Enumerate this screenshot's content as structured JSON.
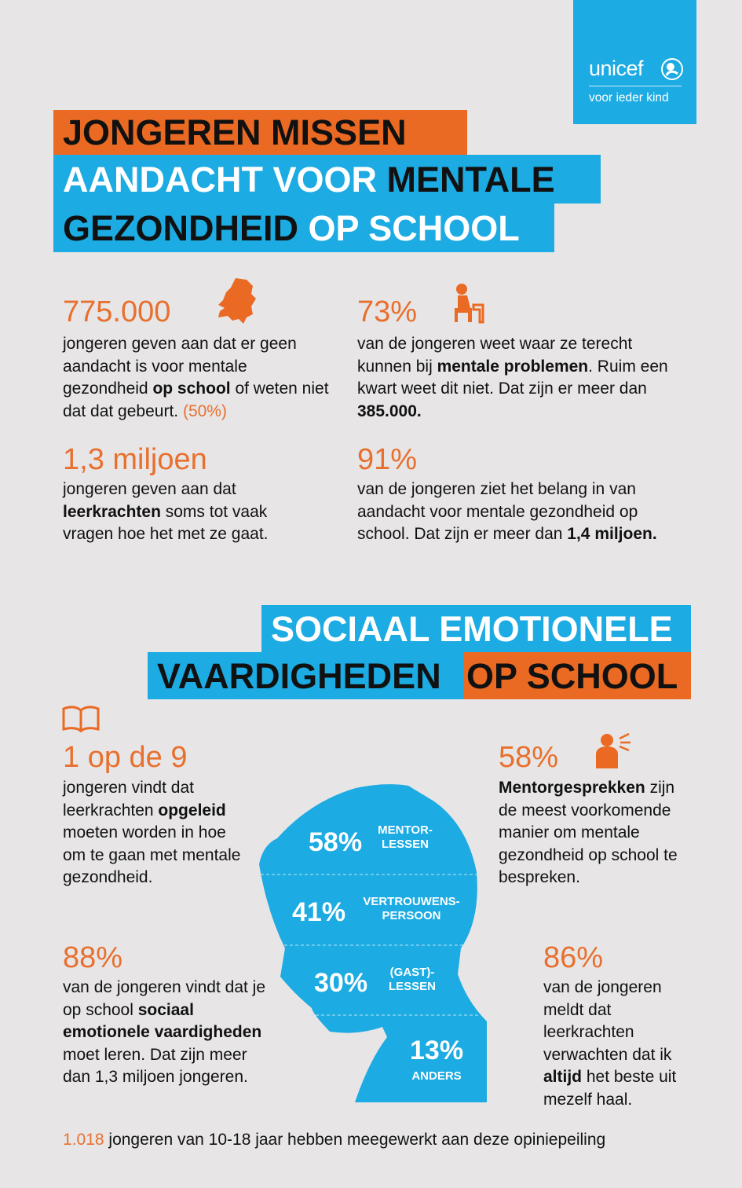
{
  "logo": {
    "name": "unicef",
    "tagline": "voor ieder kind"
  },
  "title": {
    "line1": "JONGEREN MISSEN",
    "line2a": "AANDACHT VOOR ",
    "line2b": "MENTALE",
    "line3a": "GEZONDHEID ",
    "line3b": "OP SCHOOL"
  },
  "stats_top": [
    {
      "number": "775.000",
      "t1": "jongeren geven aan dat er geen aandacht is voor mentale gezondheid ",
      "b1": "op school",
      "t2": " of weten niet dat dat gebeurt. ",
      "note": "(50%)"
    },
    {
      "number": "73%",
      "t1": "van de jongeren weet waar ze terecht kunnen bij ",
      "b1": "mentale problemen",
      "t2": ". Ruim een kwart weet dit niet. Dat zijn er meer dan ",
      "b2": "385.000."
    },
    {
      "number": "1,3 miljoen",
      "t1": "jongeren geven aan dat ",
      "b1": "leerkrachten",
      "t2": " soms tot vaak vragen hoe het met ze gaat."
    },
    {
      "number": "91%",
      "t1": "van de jongeren ziet het belang in van aandacht voor mentale gezondheid op school. Dat zijn er meer dan ",
      "b1": "1,4 miljoen."
    }
  ],
  "section2": {
    "line1": "SOCIAAL EMOTIONELE",
    "line2a": "VAARDIGHEDEN",
    "line2b": " OP SCHOOL"
  },
  "stats_bottom": [
    {
      "number": "1 op de 9",
      "t1": "jongeren vindt dat leerkrachten ",
      "b1": "opgeleid",
      "t2": " moeten worden in hoe om te gaan met mentale gezondheid."
    },
    {
      "number": "88%",
      "t1": "van de jongeren vindt dat je op school ",
      "b1": "sociaal emotionele vaardigheden",
      "t2": " moet leren. Dat zijn meer dan 1,3 miljoen jongeren."
    },
    {
      "number": "58%",
      "b1": "Mentorgesprekken",
      "t2": " zijn de meest voorkomende manier om mentale gezondheid op school te bespreken."
    },
    {
      "number": "86%",
      "t1": "van de jongeren meldt dat leerkrachten verwachten dat ik ",
      "b1": "altijd",
      "t2": " het beste uit mezelf haal."
    }
  ],
  "head_chart": [
    {
      "value": "58%",
      "label1": "MENTOR-",
      "label2": "LESSEN"
    },
    {
      "value": "41%",
      "label1": "VERTROUWENS-",
      "label2": "PERSOON"
    },
    {
      "value": "30%",
      "label1": "(GAST)-",
      "label2": "LESSEN"
    },
    {
      "value": "13%",
      "label1": "ANDERS"
    }
  ],
  "footer": {
    "count": "1.018",
    "text": " jongeren van 10-18 jaar hebben meegewerkt aan deze opiniepeiling"
  },
  "colors": {
    "orange": "#ea6a23",
    "blue": "#1cabe2",
    "background": "#e7e5e6"
  },
  "icons": [
    "netherlands-map-icon",
    "sitting-person-icon",
    "book-icon",
    "speaking-person-icon",
    "unicef-emblem-icon"
  ]
}
